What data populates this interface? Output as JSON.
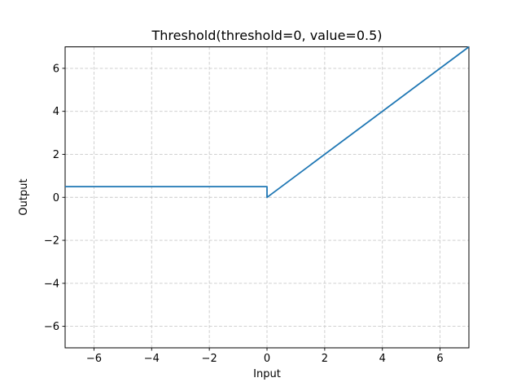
{
  "chart_data": {
    "type": "line",
    "title": "Threshold(threshold=0, value=0.5)",
    "xlabel": "Input",
    "ylabel": "Output",
    "xlim": [
      -7,
      7
    ],
    "ylim": [
      -7,
      7
    ],
    "xtick_values": [
      -6,
      -4,
      -2,
      0,
      2,
      4,
      6
    ],
    "xtick_labels": [
      "−6",
      "−4",
      "−2",
      "0",
      "2",
      "4",
      "6"
    ],
    "ytick_values": [
      -6,
      -4,
      -2,
      0,
      2,
      4,
      6
    ],
    "ytick_labels": [
      "−6",
      "−4",
      "−2",
      "0",
      "2",
      "4",
      "6"
    ],
    "grid": true,
    "grid_linestyle": "dashed",
    "legend_position": "none",
    "colors": {
      "line": "#1f77b4",
      "grid": "#c9c9c9",
      "axis": "#000000",
      "background": "#ffffff"
    },
    "series": [
      {
        "name": "Threshold",
        "color": "#1f77b4",
        "points": [
          [
            -7,
            0.5
          ],
          [
            0,
            0.5
          ],
          [
            0,
            0
          ],
          [
            7,
            7
          ]
        ]
      }
    ]
  }
}
